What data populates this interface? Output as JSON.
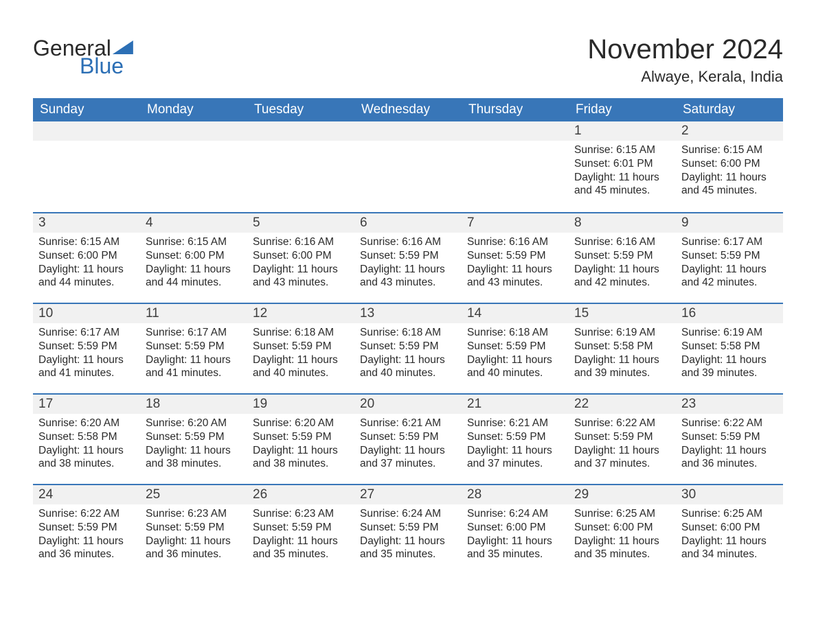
{
  "logo": {
    "word1": "General",
    "word2": "Blue"
  },
  "title": "November 2024",
  "location": "Alwaye, Kerala, India",
  "colors": {
    "header_bg": "#3876b8",
    "header_text": "#ffffff",
    "daynum_bg": "#f1f1f1",
    "row_border": "#3876b8",
    "text": "#2a2a2a",
    "logo_accent": "#2c6fb5",
    "page_bg": "#ffffff"
  },
  "typography": {
    "title_fontsize": 40,
    "location_fontsize": 22,
    "header_fontsize": 19,
    "daynum_fontsize": 19,
    "body_fontsize": 15.5
  },
  "week_header": [
    "Sunday",
    "Monday",
    "Tuesday",
    "Wednesday",
    "Thursday",
    "Friday",
    "Saturday"
  ],
  "weeks": [
    [
      null,
      null,
      null,
      null,
      null,
      {
        "n": "1",
        "sunrise": "Sunrise: 6:15 AM",
        "sunset": "Sunset: 6:01 PM",
        "daylight": "Daylight: 11 hours and 45 minutes."
      },
      {
        "n": "2",
        "sunrise": "Sunrise: 6:15 AM",
        "sunset": "Sunset: 6:00 PM",
        "daylight": "Daylight: 11 hours and 45 minutes."
      }
    ],
    [
      {
        "n": "3",
        "sunrise": "Sunrise: 6:15 AM",
        "sunset": "Sunset: 6:00 PM",
        "daylight": "Daylight: 11 hours and 44 minutes."
      },
      {
        "n": "4",
        "sunrise": "Sunrise: 6:15 AM",
        "sunset": "Sunset: 6:00 PM",
        "daylight": "Daylight: 11 hours and 44 minutes."
      },
      {
        "n": "5",
        "sunrise": "Sunrise: 6:16 AM",
        "sunset": "Sunset: 6:00 PM",
        "daylight": "Daylight: 11 hours and 43 minutes."
      },
      {
        "n": "6",
        "sunrise": "Sunrise: 6:16 AM",
        "sunset": "Sunset: 5:59 PM",
        "daylight": "Daylight: 11 hours and 43 minutes."
      },
      {
        "n": "7",
        "sunrise": "Sunrise: 6:16 AM",
        "sunset": "Sunset: 5:59 PM",
        "daylight": "Daylight: 11 hours and 43 minutes."
      },
      {
        "n": "8",
        "sunrise": "Sunrise: 6:16 AM",
        "sunset": "Sunset: 5:59 PM",
        "daylight": "Daylight: 11 hours and 42 minutes."
      },
      {
        "n": "9",
        "sunrise": "Sunrise: 6:17 AM",
        "sunset": "Sunset: 5:59 PM",
        "daylight": "Daylight: 11 hours and 42 minutes."
      }
    ],
    [
      {
        "n": "10",
        "sunrise": "Sunrise: 6:17 AM",
        "sunset": "Sunset: 5:59 PM",
        "daylight": "Daylight: 11 hours and 41 minutes."
      },
      {
        "n": "11",
        "sunrise": "Sunrise: 6:17 AM",
        "sunset": "Sunset: 5:59 PM",
        "daylight": "Daylight: 11 hours and 41 minutes."
      },
      {
        "n": "12",
        "sunrise": "Sunrise: 6:18 AM",
        "sunset": "Sunset: 5:59 PM",
        "daylight": "Daylight: 11 hours and 40 minutes."
      },
      {
        "n": "13",
        "sunrise": "Sunrise: 6:18 AM",
        "sunset": "Sunset: 5:59 PM",
        "daylight": "Daylight: 11 hours and 40 minutes."
      },
      {
        "n": "14",
        "sunrise": "Sunrise: 6:18 AM",
        "sunset": "Sunset: 5:59 PM",
        "daylight": "Daylight: 11 hours and 40 minutes."
      },
      {
        "n": "15",
        "sunrise": "Sunrise: 6:19 AM",
        "sunset": "Sunset: 5:58 PM",
        "daylight": "Daylight: 11 hours and 39 minutes."
      },
      {
        "n": "16",
        "sunrise": "Sunrise: 6:19 AM",
        "sunset": "Sunset: 5:58 PM",
        "daylight": "Daylight: 11 hours and 39 minutes."
      }
    ],
    [
      {
        "n": "17",
        "sunrise": "Sunrise: 6:20 AM",
        "sunset": "Sunset: 5:58 PM",
        "daylight": "Daylight: 11 hours and 38 minutes."
      },
      {
        "n": "18",
        "sunrise": "Sunrise: 6:20 AM",
        "sunset": "Sunset: 5:59 PM",
        "daylight": "Daylight: 11 hours and 38 minutes."
      },
      {
        "n": "19",
        "sunrise": "Sunrise: 6:20 AM",
        "sunset": "Sunset: 5:59 PM",
        "daylight": "Daylight: 11 hours and 38 minutes."
      },
      {
        "n": "20",
        "sunrise": "Sunrise: 6:21 AM",
        "sunset": "Sunset: 5:59 PM",
        "daylight": "Daylight: 11 hours and 37 minutes."
      },
      {
        "n": "21",
        "sunrise": "Sunrise: 6:21 AM",
        "sunset": "Sunset: 5:59 PM",
        "daylight": "Daylight: 11 hours and 37 minutes."
      },
      {
        "n": "22",
        "sunrise": "Sunrise: 6:22 AM",
        "sunset": "Sunset: 5:59 PM",
        "daylight": "Daylight: 11 hours and 37 minutes."
      },
      {
        "n": "23",
        "sunrise": "Sunrise: 6:22 AM",
        "sunset": "Sunset: 5:59 PM",
        "daylight": "Daylight: 11 hours and 36 minutes."
      }
    ],
    [
      {
        "n": "24",
        "sunrise": "Sunrise: 6:22 AM",
        "sunset": "Sunset: 5:59 PM",
        "daylight": "Daylight: 11 hours and 36 minutes."
      },
      {
        "n": "25",
        "sunrise": "Sunrise: 6:23 AM",
        "sunset": "Sunset: 5:59 PM",
        "daylight": "Daylight: 11 hours and 36 minutes."
      },
      {
        "n": "26",
        "sunrise": "Sunrise: 6:23 AM",
        "sunset": "Sunset: 5:59 PM",
        "daylight": "Daylight: 11 hours and 35 minutes."
      },
      {
        "n": "27",
        "sunrise": "Sunrise: 6:24 AM",
        "sunset": "Sunset: 5:59 PM",
        "daylight": "Daylight: 11 hours and 35 minutes."
      },
      {
        "n": "28",
        "sunrise": "Sunrise: 6:24 AM",
        "sunset": "Sunset: 6:00 PM",
        "daylight": "Daylight: 11 hours and 35 minutes."
      },
      {
        "n": "29",
        "sunrise": "Sunrise: 6:25 AM",
        "sunset": "Sunset: 6:00 PM",
        "daylight": "Daylight: 11 hours and 35 minutes."
      },
      {
        "n": "30",
        "sunrise": "Sunrise: 6:25 AM",
        "sunset": "Sunset: 6:00 PM",
        "daylight": "Daylight: 11 hours and 34 minutes."
      }
    ]
  ]
}
